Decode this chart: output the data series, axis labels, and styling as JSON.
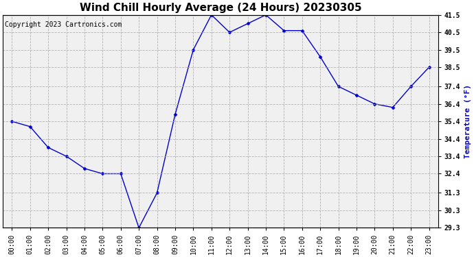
{
  "title": "Wind Chill Hourly Average (24 Hours) 20230305",
  "copyright_text": "Copyright 2023 Cartronics.com",
  "ylabel": "Temperature (°F)",
  "ylabel_color": "#0000cc",
  "hours": [
    "00:00",
    "01:00",
    "02:00",
    "03:00",
    "04:00",
    "05:00",
    "06:00",
    "07:00",
    "08:00",
    "09:00",
    "10:00",
    "11:00",
    "12:00",
    "13:00",
    "14:00",
    "15:00",
    "16:00",
    "17:00",
    "18:00",
    "19:00",
    "20:00",
    "21:00",
    "22:00",
    "23:00"
  ],
  "values": [
    35.4,
    35.1,
    33.9,
    33.4,
    32.7,
    32.4,
    32.4,
    29.3,
    31.3,
    35.8,
    39.5,
    41.5,
    40.5,
    41.0,
    41.5,
    40.6,
    40.6,
    39.1,
    37.4,
    36.9,
    36.4,
    36.2,
    37.4,
    38.5
  ],
  "line_color": "#0000cc",
  "marker": "D",
  "marker_size": 2.5,
  "ylim": [
    29.3,
    41.5
  ],
  "yticks": [
    29.3,
    30.3,
    31.3,
    32.4,
    33.4,
    34.4,
    35.4,
    36.4,
    37.4,
    38.5,
    39.5,
    40.5,
    41.5
  ],
  "background_color": "#ffffff",
  "plot_bg_color": "#f0f0f0",
  "grid_color": "#aaaaaa",
  "grid_style": "--",
  "title_fontsize": 11,
  "tick_fontsize": 7,
  "copyright_fontsize": 7,
  "ylabel_fontsize": 8
}
